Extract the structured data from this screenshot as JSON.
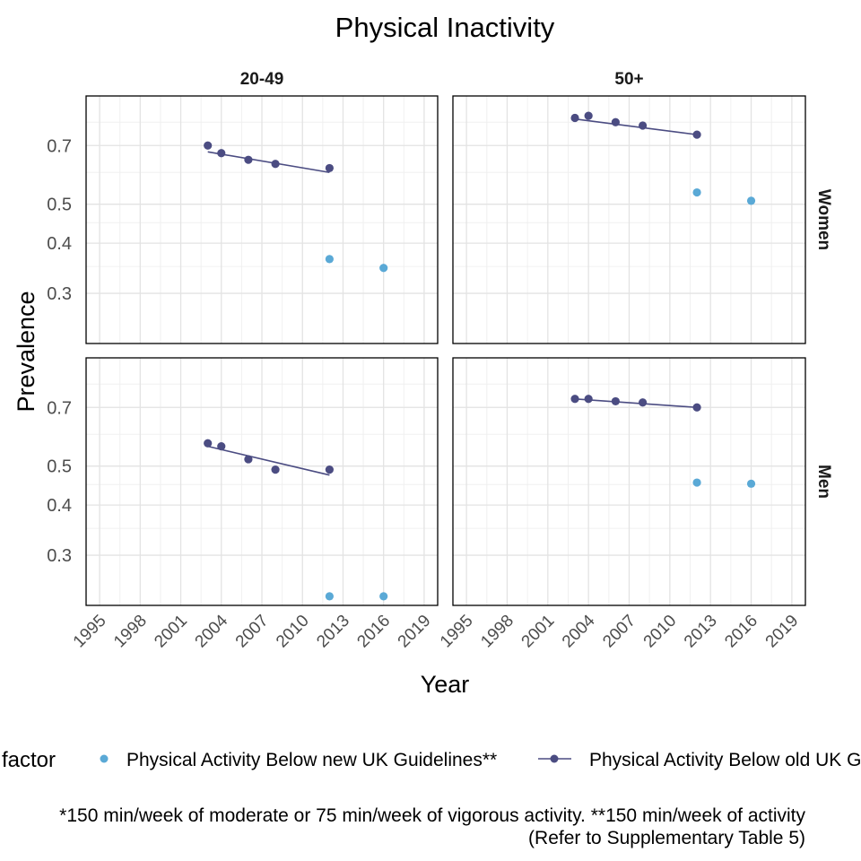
{
  "chart_data": {
    "type": "scatter",
    "title": "Physical Inactivity",
    "xlabel": "Year",
    "ylabel": "Prevalence",
    "x_ticks": [
      1995,
      1998,
      2001,
      2004,
      2007,
      2010,
      2013,
      2016,
      2019
    ],
    "y_ticks": [
      0.3,
      0.4,
      0.5,
      0.7
    ],
    "y_scale": "log",
    "xlim": [
      1994,
      2020
    ],
    "ylim": [
      0.225,
      0.93
    ],
    "grid": true,
    "column_facets": [
      "20-49",
      "50+"
    ],
    "row_facets": [
      "Women",
      "Men"
    ],
    "legend": {
      "title": "Risk factor",
      "position": "bottom",
      "entries": [
        {
          "label": "Physical Activity Below new UK Guidelines**",
          "color": "#5aa9d6",
          "mark": "point"
        },
        {
          "label": "Physical Activity Below old UK Guidelines*",
          "color": "#4b4c82",
          "mark": "point+line"
        }
      ]
    },
    "caption_lines": [
      "*150 min/week of moderate or 75 min/week of vigorous activity. **150 min/week of activity",
      "(Refer to Supplementary Table 5)"
    ],
    "panels": [
      {
        "row": "Women",
        "col": "20-49",
        "old": {
          "x": [
            2003,
            2004,
            2006,
            2008,
            2012
          ],
          "y": [
            0.7,
            0.67,
            0.645,
            0.63,
            0.615
          ],
          "trend": [
            [
              2003,
              0.675
            ],
            [
              2012,
              0.6
            ]
          ]
        },
        "new": {
          "x": [
            2012,
            2016
          ],
          "y": [
            0.365,
            0.347
          ]
        }
      },
      {
        "row": "Women",
        "col": "50+",
        "old": {
          "x": [
            2003,
            2004,
            2006,
            2008,
            2012
          ],
          "y": [
            0.82,
            0.83,
            0.8,
            0.785,
            0.745
          ],
          "trend": [
            [
              2003,
              0.815
            ],
            [
              2012,
              0.745
            ]
          ]
        },
        "new": {
          "x": [
            2012,
            2016
          ],
          "y": [
            0.535,
            0.51
          ]
        }
      },
      {
        "row": "Men",
        "col": "20-49",
        "old": {
          "x": [
            2003,
            2004,
            2006,
            2008,
            2012
          ],
          "y": [
            0.57,
            0.56,
            0.52,
            0.49,
            0.49
          ],
          "trend": [
            [
              2003,
              0.56
            ],
            [
              2012,
              0.475
            ]
          ]
        },
        "new": {
          "x": [
            2012,
            2016
          ],
          "y": [
            0.237,
            0.237
          ]
        }
      },
      {
        "row": "Men",
        "col": "50+",
        "old": {
          "x": [
            2003,
            2004,
            2006,
            2008,
            2012
          ],
          "y": [
            0.735,
            0.735,
            0.725,
            0.72,
            0.7
          ],
          "trend": [
            [
              2003,
              0.735
            ],
            [
              2012,
              0.7
            ]
          ]
        },
        "new": {
          "x": [
            2012,
            2016
          ],
          "y": [
            0.455,
            0.452
          ]
        }
      }
    ]
  }
}
